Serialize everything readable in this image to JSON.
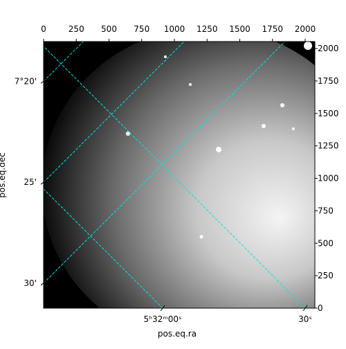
{
  "chart_data": {
    "type": "image",
    "xlabel": "pos.eq.ra",
    "ylabel": "pos.eq.dec",
    "xlim": [
      0,
      2074
    ],
    "ylim": [
      0,
      2054
    ],
    "xticks": [
      0,
      250,
      500,
      750,
      1000,
      1250,
      1500,
      1750,
      2000
    ],
    "yticks": [
      0,
      250,
      500,
      750,
      1000,
      1250,
      1500,
      1750,
      2000
    ],
    "ra_ticks": [
      {
        "value": 910,
        "label": "5ʰ32ᵐ00ˢ"
      },
      {
        "value": 2000,
        "label": "30ˢ"
      }
    ],
    "dec_ticks": [
      {
        "value": 1748,
        "label": "7°20'"
      },
      {
        "value": 970,
        "label": "25'"
      },
      {
        "value": 193,
        "label": "30'"
      }
    ],
    "grid": true,
    "grid_color": "#00e5e5"
  }
}
